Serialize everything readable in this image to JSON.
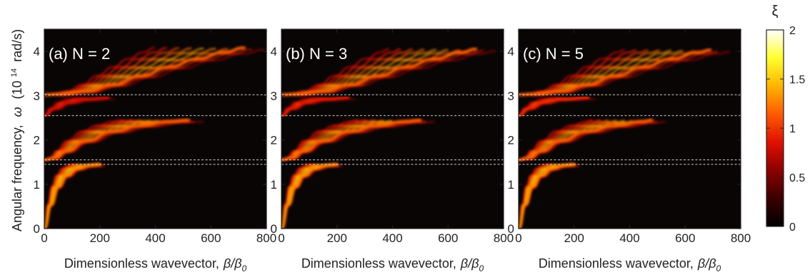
{
  "y_axis_label": {
    "prefix": "Angular frequency,",
    "symbol": "ω",
    "unit_open": "(10",
    "unit_exp": "14",
    "unit_close": "rad/s)"
  },
  "x_axis_label": {
    "text": "Dimensionless wavevector,",
    "symbol": "β/β",
    "subscript": "0"
  },
  "colorbar": {
    "label": "ξ",
    "ticks": [
      "0",
      "0.5",
      "1",
      "1.5",
      "2"
    ],
    "range": [
      0,
      2
    ],
    "colormap": [
      "#000000",
      "#3c0000",
      "#8c0000",
      "#e01000",
      "#ff5a00",
      "#ffb400",
      "#ffff30",
      "#ffffff"
    ]
  },
  "chart_data": [
    {
      "type": "heatmap",
      "panel_label": "(a) N = 2",
      "xlim": [
        0,
        800
      ],
      "ylim": [
        0,
        4.5
      ],
      "x_ticks": [
        "0",
        "200",
        "400",
        "600",
        "800"
      ],
      "y_ticks": [
        "0",
        "1",
        "2",
        "3",
        "4"
      ],
      "background": "#0a0505",
      "band_edges_dashed": [
        1.45,
        1.55,
        2.55,
        3.02
      ],
      "bands": [
        {
          "name": "",
          "x": [
            0,
            25,
            50,
            80,
            120,
            160,
            200
          ],
          "y": [
            0,
            0.55,
            0.95,
            1.2,
            1.36,
            1.43,
            1.45
          ],
          "brightness": 0.95
        },
        {
          "name": "",
          "x": [
            0,
            40,
            80,
            150,
            250,
            350,
            450,
            520
          ],
          "y": [
            1.55,
            1.6,
            1.75,
            1.98,
            2.2,
            2.33,
            2.42,
            2.45
          ],
          "brightness": 0.85
        },
        {
          "name": "",
          "x": [
            0,
            60,
            150,
            250,
            350,
            450,
            550,
            650,
            720
          ],
          "y": [
            3.02,
            3.04,
            3.1,
            3.25,
            3.45,
            3.65,
            3.83,
            3.98,
            4.08
          ],
          "brightness": 0.85
        },
        {
          "name": "",
          "x": [
            0,
            40,
            90,
            150,
            230
          ],
          "y": [
            2.55,
            2.72,
            2.85,
            2.92,
            2.96
          ],
          "brightness": 0.6
        }
      ]
    },
    {
      "type": "heatmap",
      "panel_label": "(b) N = 3",
      "xlim": [
        0,
        800
      ],
      "ylim": [
        0,
        4.5
      ],
      "x_ticks": [
        "0",
        "200",
        "400",
        "600",
        "800"
      ],
      "y_ticks": [
        "0",
        "1",
        "2",
        "3",
        "4"
      ],
      "background": "#0a0505",
      "band_edges_dashed": [
        1.45,
        1.55,
        2.55,
        3.02
      ],
      "bands": [
        {
          "name": "",
          "x": [
            0,
            25,
            50,
            80,
            120,
            160,
            200
          ],
          "y": [
            0,
            0.55,
            0.95,
            1.2,
            1.36,
            1.43,
            1.45
          ],
          "brightness": 0.95
        },
        {
          "name": "",
          "x": [
            0,
            40,
            80,
            150,
            250,
            350,
            450,
            500
          ],
          "y": [
            1.55,
            1.6,
            1.75,
            1.98,
            2.2,
            2.33,
            2.42,
            2.45
          ],
          "brightness": 0.85
        },
        {
          "name": "",
          "x": [
            0,
            60,
            150,
            250,
            350,
            450,
            550,
            650,
            700
          ],
          "y": [
            3.02,
            3.04,
            3.1,
            3.25,
            3.45,
            3.65,
            3.83,
            3.98,
            4.05
          ],
          "brightness": 0.85
        },
        {
          "name": "",
          "x": [
            0,
            40,
            90,
            150,
            240
          ],
          "y": [
            2.55,
            2.72,
            2.85,
            2.92,
            2.96
          ],
          "brightness": 0.65
        }
      ]
    },
    {
      "type": "heatmap",
      "panel_label": "(c) N = 5",
      "xlim": [
        0,
        800
      ],
      "ylim": [
        0,
        4.5
      ],
      "x_ticks": [
        "0",
        "200",
        "400",
        "600",
        "800"
      ],
      "y_ticks": [
        "0",
        "1",
        "2",
        "3",
        "4"
      ],
      "background": "#0a0505",
      "band_edges_dashed": [
        1.45,
        1.55,
        2.55,
        3.02
      ],
      "bands": [
        {
          "name": "",
          "x": [
            0,
            25,
            50,
            80,
            120,
            160,
            200
          ],
          "y": [
            0,
            0.55,
            0.95,
            1.2,
            1.36,
            1.43,
            1.45
          ],
          "brightness": 0.95
        },
        {
          "name": "",
          "x": [
            0,
            40,
            80,
            150,
            250,
            350,
            450,
            480
          ],
          "y": [
            1.55,
            1.6,
            1.75,
            1.98,
            2.2,
            2.33,
            2.42,
            2.45
          ],
          "brightness": 0.85
        },
        {
          "name": "",
          "x": [
            0,
            60,
            150,
            250,
            350,
            450,
            550,
            650,
            690
          ],
          "y": [
            3.02,
            3.04,
            3.1,
            3.25,
            3.45,
            3.65,
            3.83,
            3.98,
            4.03
          ],
          "brightness": 0.85
        },
        {
          "name": "",
          "x": [
            0,
            40,
            90,
            150,
            250
          ],
          "y": [
            2.55,
            2.72,
            2.85,
            2.92,
            2.96
          ],
          "brightness": 0.7
        }
      ]
    }
  ]
}
